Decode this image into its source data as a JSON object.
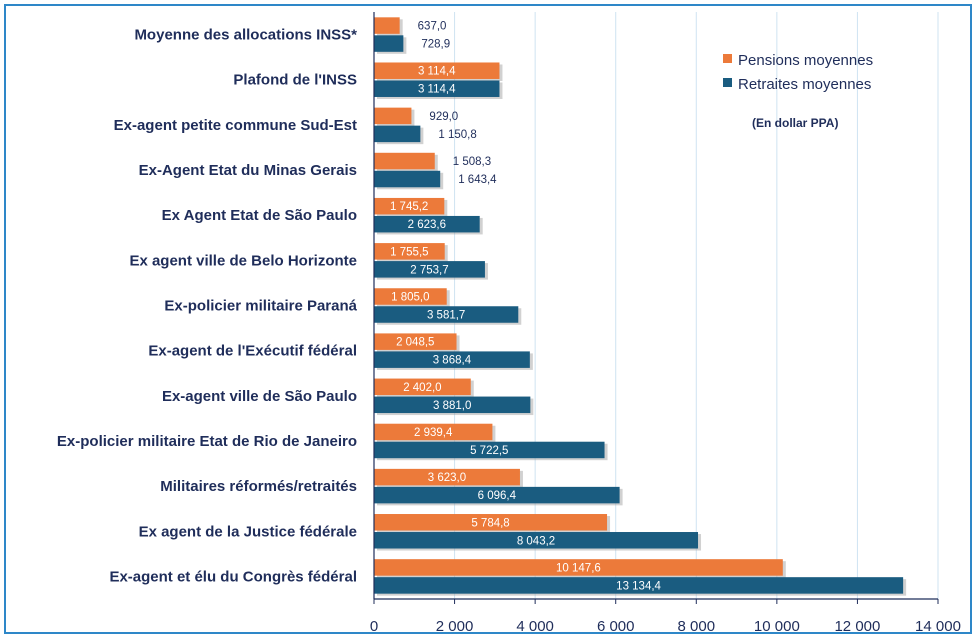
{
  "chart_data": {
    "type": "bar",
    "orientation": "horizontal",
    "title": "",
    "xlabel": "",
    "ylabel": "",
    "xlim": [
      0,
      14000
    ],
    "x_ticks": [
      0,
      2000,
      4000,
      6000,
      8000,
      10000,
      12000,
      14000
    ],
    "x_tick_labels": [
      "0",
      "2 000",
      "4 000",
      "6 000",
      "8 000",
      "10 000",
      "12 000",
      "14 000"
    ],
    "grid": true,
    "legend_position": "top-right",
    "note": "(En dollar PPA)",
    "categories": [
      "Moyenne des allocations INSS*",
      "Plafond de l'INSS",
      "Ex-agent petite commune Sud-Est",
      "Ex-Agent Etat du Minas Gerais",
      "Ex Agent Etat de São Paulo",
      "Ex agent ville de Belo Horizonte",
      "Ex-policier militaire Paraná",
      "Ex-agent de l'Exécutif fédéral",
      "Ex-agent ville de São Paulo",
      "Ex-policier militaire Etat de Rio de Janeiro",
      "Militaires réformés/retraités",
      "Ex agent de la Justice fédérale",
      "Ex-agent et élu du Congrès fédéral"
    ],
    "series": [
      {
        "name": "Pensions moyennes",
        "color": "#ec7a3a",
        "values": [
          637.0,
          3114.4,
          929.0,
          1508.3,
          1745.2,
          1755.5,
          1805.0,
          2048.5,
          2402.0,
          2939.4,
          3623.0,
          5784.8,
          10147.6
        ],
        "labels": [
          "637,0",
          "3 114,4",
          "929,0",
          "1 508,3",
          "1 745,2",
          "1 755,5",
          "1 805,0",
          "2 048,5",
          "2 402,0",
          "2 939,4",
          "3 623,0",
          "5 784,8",
          "10 147,6"
        ]
      },
      {
        "name": "Retraites moyennes",
        "color": "#1a5c80",
        "values": [
          728.9,
          3114.4,
          1150.8,
          1643.4,
          2623.6,
          2753.7,
          3581.7,
          3868.4,
          3881.0,
          5722.5,
          6096.4,
          8043.2,
          13134.4
        ],
        "labels": [
          "728,9",
          "3 114,4",
          "1 150,8",
          "1 643,4",
          "2 623,6",
          "2 753,7",
          "3 581,7",
          "3 868,4",
          "3 881,0",
          "5 722,5",
          "6 096,4",
          "8 043,2",
          "13 134,4"
        ]
      }
    ]
  }
}
